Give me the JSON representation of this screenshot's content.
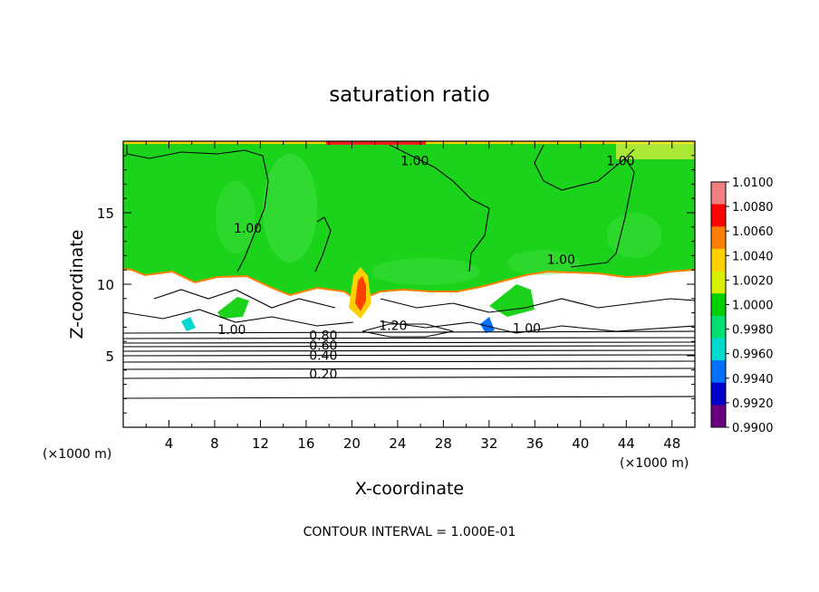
{
  "chart_data": {
    "type": "heatmap",
    "title": "saturation ratio",
    "xlabel": "X-coordinate",
    "ylabel": "Z-coordinate",
    "x_unit_left": "(×1000 m)",
    "x_unit_right": "(×1000 m)",
    "xlim": [
      0,
      50
    ],
    "ylim": [
      0,
      20
    ],
    "x_ticks": [
      4,
      8,
      12,
      16,
      20,
      24,
      28,
      32,
      36,
      40,
      44,
      48
    ],
    "y_ticks": [
      5,
      10,
      15
    ],
    "colorbar": {
      "labels": [
        "1.0100",
        "1.0080",
        "1.0060",
        "1.0040",
        "1.0020",
        "1.0000",
        "0.9980",
        "0.9960",
        "0.9940",
        "0.9920",
        "0.9900"
      ],
      "values": [
        1.01,
        1.008,
        1.006,
        1.004,
        1.002,
        1.0,
        0.998,
        0.996,
        0.994,
        0.992,
        0.99
      ],
      "colors": [
        "#f08080",
        "#ff0000",
        "#ff7f00",
        "#ffd000",
        "#d8f000",
        "#00d000",
        "#00e070",
        "#00d8d0",
        "#0070ff",
        "#0000cc",
        "#6a0080"
      ]
    },
    "contour_labels": [
      {
        "text": "1.00",
        "x": 25.5,
        "y": 18.5
      },
      {
        "text": "1.00",
        "x": 43.5,
        "y": 18.5
      },
      {
        "text": "1.00",
        "x": 10.9,
        "y": 13.8
      },
      {
        "text": "1.00",
        "x": 38.3,
        "y": 11.6
      },
      {
        "text": "1.00",
        "x": 9.5,
        "y": 6.7
      },
      {
        "text": "1.00",
        "x": 35.3,
        "y": 6.8
      },
      {
        "text": "1.20",
        "x": 23.6,
        "y": 7.0
      },
      {
        "text": "0.80",
        "x": 17.5,
        "y": 6.3
      },
      {
        "text": "0.60",
        "x": 17.5,
        "y": 5.6
      },
      {
        "text": "0.40",
        "x": 17.5,
        "y": 4.9
      },
      {
        "text": "0.20",
        "x": 17.5,
        "y": 3.6
      }
    ],
    "annotation": "CONTOUR INTERVAL = 1.000E-01"
  }
}
